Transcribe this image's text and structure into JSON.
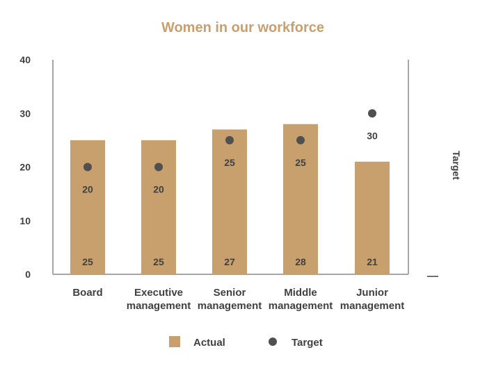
{
  "chart_data": {
    "type": "bar",
    "title": "Women in our workforce",
    "categories": [
      [
        "Board"
      ],
      [
        "Executive",
        "management"
      ],
      [
        "Senior",
        "management"
      ],
      [
        "Middle",
        "management"
      ],
      [
        "Junior",
        "management"
      ]
    ],
    "series": [
      {
        "name": "Actual",
        "kind": "bar",
        "values": [
          25,
          25,
          27,
          28,
          21
        ],
        "color": "#c8a06e"
      },
      {
        "name": "Target",
        "kind": "point",
        "values": [
          20,
          20,
          25,
          25,
          30
        ],
        "color": "#505050"
      }
    ],
    "ylim": [
      0,
      40
    ],
    "yticks": [
      0,
      10,
      20,
      30,
      40
    ],
    "secondary_axis_label": "Target",
    "grid": false,
    "legend_position": "bottom",
    "colors": {
      "title": "#c8a06e",
      "axis": "#a6a6a6",
      "text": "#404040"
    }
  }
}
